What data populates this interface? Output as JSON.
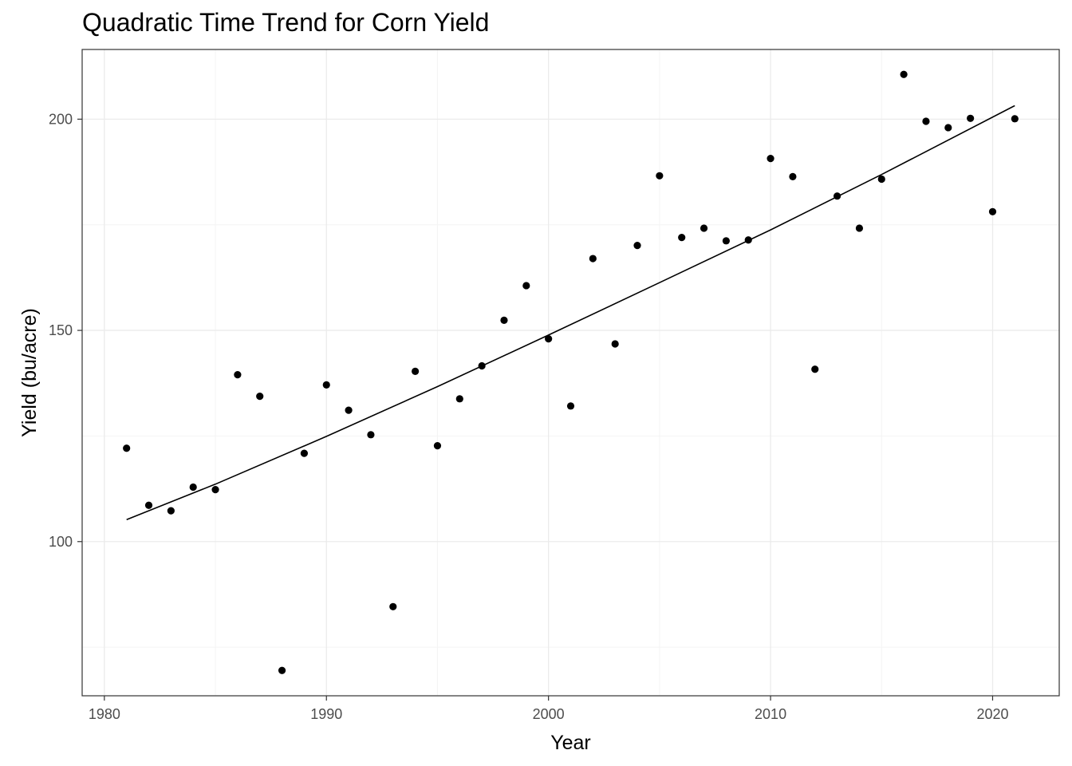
{
  "chart_data": {
    "type": "scatter",
    "title": "Quadratic Time Trend for Corn Yield",
    "xlabel": "Year",
    "ylabel": "Yield (bu/acre)",
    "xlim": [
      1979,
      2023
    ],
    "ylim": [
      63.5,
      216.5
    ],
    "x_ticks": [
      1980,
      1990,
      2000,
      2010,
      2020
    ],
    "y_ticks": [
      100,
      150,
      200
    ],
    "grid": true,
    "theme": "bw",
    "colors": {
      "points": "#000000",
      "trend": "#000000",
      "grid_major": "#ebebeb",
      "grid_minor": "#f4f4f4",
      "panel_border": "#333333"
    },
    "series": [
      {
        "kind": "points",
        "x": [
          1981,
          1982,
          1983,
          1984,
          1985,
          1986,
          1987,
          1988,
          1989,
          1990,
          1991,
          1992,
          1993,
          1994,
          1995,
          1996,
          1997,
          1998,
          1999,
          2000,
          2001,
          2002,
          2003,
          2004,
          2005,
          2006,
          2007,
          2008,
          2009,
          2010,
          2011,
          2012,
          2013,
          2014,
          2015,
          2016,
          2017,
          2018,
          2019,
          2020,
          2021
        ],
        "y": [
          122.1,
          108.6,
          107.3,
          112.9,
          112.3,
          139.5,
          134.4,
          69.5,
          120.9,
          137.1,
          131.1,
          125.3,
          84.6,
          140.3,
          122.7,
          133.8,
          141.6,
          152.4,
          160.6,
          148.0,
          132.1,
          167.0,
          146.8,
          170.1,
          186.6,
          172.0,
          174.2,
          171.2,
          171.4,
          190.7,
          186.4,
          140.8,
          181.8,
          174.2,
          185.8,
          210.6,
          199.5,
          198.0,
          200.2,
          178.1,
          200.1
        ]
      },
      {
        "kind": "line",
        "x": [
          1981,
          1985,
          1990,
          1995,
          2000,
          2005,
          2010,
          2015,
          2021
        ],
        "y": [
          105.2,
          113.6,
          124.9,
          136.7,
          148.9,
          161.3,
          173.8,
          186.9,
          203.2
        ]
      }
    ]
  }
}
